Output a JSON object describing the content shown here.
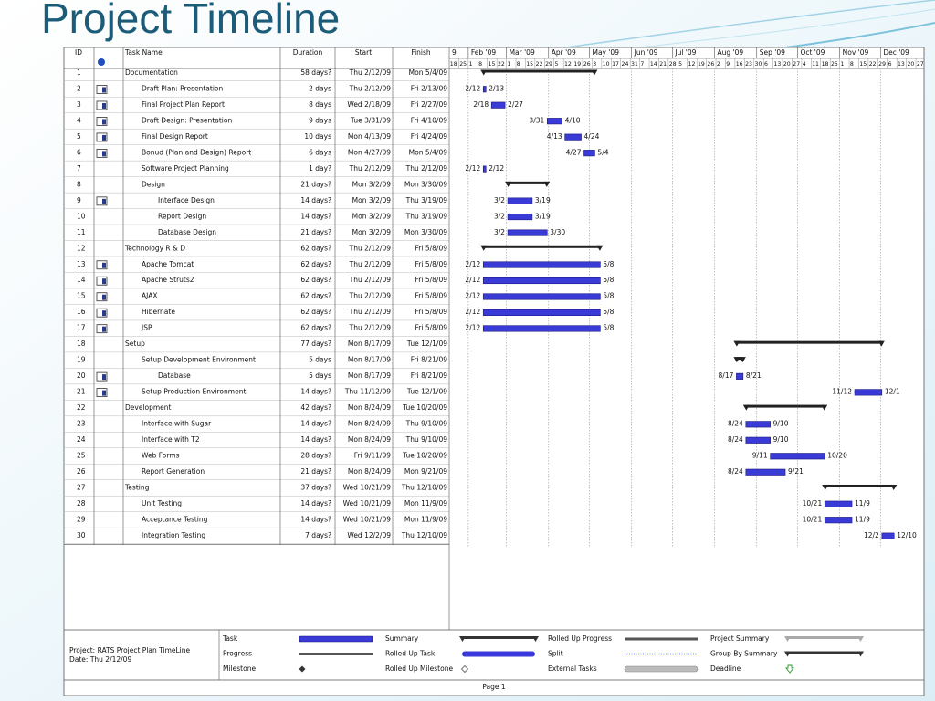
{
  "title": "Project Timeline",
  "table": {
    "header": {
      "id": "ID",
      "name": "Task Name",
      "duration": "Duration",
      "start": "Start",
      "finish": "Finish"
    },
    "rows": [
      {
        "id": 1,
        "name": "Documentation",
        "duration": "58 days?",
        "start": "Thu 2/12/09",
        "finish": "Mon 5/4/09",
        "level": 0,
        "summary": true
      },
      {
        "id": 2,
        "name": "Draft Plan: Presentation",
        "duration": "2 days",
        "start": "Thu 2/12/09",
        "finish": "Fri 2/13/09",
        "level": 1,
        "icon": true,
        "left_label": "2/12",
        "right_label": "2/13"
      },
      {
        "id": 3,
        "name": "Final Project Plan Report",
        "duration": "8 days",
        "start": "Wed 2/18/09",
        "finish": "Fri 2/27/09",
        "level": 1,
        "icon": true,
        "left_label": "2/18",
        "right_label": "2/27"
      },
      {
        "id": 4,
        "name": "Draft Design: Presentation",
        "duration": "9 days",
        "start": "Tue 3/31/09",
        "finish": "Fri 4/10/09",
        "level": 1,
        "icon": true,
        "left_label": "3/31",
        "right_label": "4/10"
      },
      {
        "id": 5,
        "name": "Final Design Report",
        "duration": "10 days",
        "start": "Mon 4/13/09",
        "finish": "Fri 4/24/09",
        "level": 1,
        "icon": true,
        "left_label": "4/13",
        "right_label": "4/24"
      },
      {
        "id": 6,
        "name": "Bonud (Plan and Design) Report",
        "duration": "6 days",
        "start": "Mon 4/27/09",
        "finish": "Mon 5/4/09",
        "level": 1,
        "icon": true,
        "left_label": "4/27",
        "right_label": "5/4"
      },
      {
        "id": 7,
        "name": "Software Project Planning",
        "duration": "1 day?",
        "start": "Thu 2/12/09",
        "finish": "Thu 2/12/09",
        "level": 1,
        "left_label": "2/12",
        "right_label": "2/12"
      },
      {
        "id": 8,
        "name": "Design",
        "duration": "21 days?",
        "start": "Mon 3/2/09",
        "finish": "Mon 3/30/09",
        "level": 1,
        "summary": true
      },
      {
        "id": 9,
        "name": "Interface Design",
        "duration": "14 days?",
        "start": "Mon 3/2/09",
        "finish": "Thu 3/19/09",
        "level": 2,
        "icon": true,
        "left_label": "3/2",
        "right_label": "3/19"
      },
      {
        "id": 10,
        "name": "Report Design",
        "duration": "14 days?",
        "start": "Mon 3/2/09",
        "finish": "Thu 3/19/09",
        "level": 2,
        "left_label": "3/2",
        "right_label": "3/19"
      },
      {
        "id": 11,
        "name": "Database Design",
        "duration": "21 days?",
        "start": "Mon 3/2/09",
        "finish": "Mon 3/30/09",
        "level": 2,
        "left_label": "3/2",
        "right_label": "3/30"
      },
      {
        "id": 12,
        "name": "Technology R & D",
        "duration": "62 days?",
        "start": "Thu 2/12/09",
        "finish": "Fri 5/8/09",
        "level": 0,
        "summary": true
      },
      {
        "id": 13,
        "name": "Apache Tomcat",
        "duration": "62 days?",
        "start": "Thu 2/12/09",
        "finish": "Fri 5/8/09",
        "level": 1,
        "icon": true,
        "left_label": "2/12",
        "right_label": "5/8"
      },
      {
        "id": 14,
        "name": "Apache Struts2",
        "duration": "62 days?",
        "start": "Thu 2/12/09",
        "finish": "Fri 5/8/09",
        "level": 1,
        "icon": true,
        "left_label": "2/12",
        "right_label": "5/8"
      },
      {
        "id": 15,
        "name": "AJAX",
        "duration": "62 days?",
        "start": "Thu 2/12/09",
        "finish": "Fri 5/8/09",
        "level": 1,
        "icon": true,
        "left_label": "2/12",
        "right_label": "5/8"
      },
      {
        "id": 16,
        "name": "Hibernate",
        "duration": "62 days?",
        "start": "Thu 2/12/09",
        "finish": "Fri 5/8/09",
        "level": 1,
        "icon": true,
        "left_label": "2/12",
        "right_label": "5/8"
      },
      {
        "id": 17,
        "name": "JSP",
        "duration": "62 days?",
        "start": "Thu 2/12/09",
        "finish": "Fri 5/8/09",
        "level": 1,
        "icon": true,
        "left_label": "2/12",
        "right_label": "5/8"
      },
      {
        "id": 18,
        "name": "Setup",
        "duration": "77 days?",
        "start": "Mon 8/17/09",
        "finish": "Tue 12/1/09",
        "level": 0,
        "summary": true
      },
      {
        "id": 19,
        "name": "Setup Development Environment",
        "duration": "5 days",
        "start": "Mon 8/17/09",
        "finish": "Fri 8/21/09",
        "level": 1,
        "summary": true
      },
      {
        "id": 20,
        "name": "Database",
        "duration": "5 days",
        "start": "Mon 8/17/09",
        "finish": "Fri 8/21/09",
        "level": 2,
        "icon": true,
        "left_label": "8/17",
        "right_label": "8/21"
      },
      {
        "id": 21,
        "name": "Setup Production Environment",
        "duration": "14 days?",
        "start": "Thu 11/12/09",
        "finish": "Tue 12/1/09",
        "level": 1,
        "icon": true,
        "left_label": "11/12",
        "right_label": "12/1"
      },
      {
        "id": 22,
        "name": "Development",
        "duration": "42 days?",
        "start": "Mon 8/24/09",
        "finish": "Tue 10/20/09",
        "level": 0,
        "summary": true
      },
      {
        "id": 23,
        "name": "Interface with Sugar",
        "duration": "14 days?",
        "start": "Mon 8/24/09",
        "finish": "Thu 9/10/09",
        "level": 1,
        "left_label": "8/24",
        "right_label": "9/10"
      },
      {
        "id": 24,
        "name": "Interface with T2",
        "duration": "14 days?",
        "start": "Mon 8/24/09",
        "finish": "Thu 9/10/09",
        "level": 1,
        "left_label": "8/24",
        "right_label": "9/10"
      },
      {
        "id": 25,
        "name": "Web Forms",
        "duration": "28 days?",
        "start": "Fri 9/11/09",
        "finish": "Tue 10/20/09",
        "level": 1,
        "left_label": "9/11",
        "right_label": "10/20"
      },
      {
        "id": 26,
        "name": "Report Generation",
        "duration": "21 days?",
        "start": "Mon 8/24/09",
        "finish": "Mon 9/21/09",
        "level": 1,
        "left_label": "8/24",
        "right_label": "9/21"
      },
      {
        "id": 27,
        "name": "Testing",
        "duration": "37 days?",
        "start": "Wed 10/21/09",
        "finish": "Thu 12/10/09",
        "level": 0,
        "summary": true
      },
      {
        "id": 28,
        "name": "Unit Testing",
        "duration": "14 days?",
        "start": "Wed 10/21/09",
        "finish": "Mon 11/9/09",
        "level": 1,
        "left_label": "10/21",
        "right_label": "11/9"
      },
      {
        "id": 29,
        "name": "Acceptance Testing",
        "duration": "14 days?",
        "start": "Wed 10/21/09",
        "finish": "Mon 11/9/09",
        "level": 1,
        "left_label": "10/21",
        "right_label": "11/9"
      },
      {
        "id": 30,
        "name": "Integration Testing",
        "duration": "7 days?",
        "start": "Wed 12/2/09",
        "finish": "Thu 12/10/09",
        "level": 1,
        "left_label": "12/2",
        "right_label": "12/10"
      }
    ]
  },
  "timescale": {
    "months": [
      "9",
      "Feb '09",
      "Mar '09",
      "Apr '09",
      "May '09",
      "Jun '09",
      "Jul '09",
      "Aug '09",
      "Sep '09",
      "Oct '09",
      "Nov '09",
      "Dec '09"
    ],
    "weeks": [
      18,
      25,
      1,
      8,
      15,
      22,
      1,
      8,
      15,
      22,
      29,
      5,
      12,
      19,
      26,
      3,
      10,
      17,
      24,
      31,
      7,
      14,
      21,
      28,
      5,
      12,
      19,
      26,
      2,
      9,
      16,
      23,
      30,
      6,
      13,
      20,
      27,
      4,
      11,
      18,
      25,
      1,
      8,
      15,
      22,
      29,
      6,
      13,
      20,
      27
    ]
  },
  "legend": {
    "project": "Project: RATS Project Plan TimeLine",
    "date": "Date: Thu 2/12/09",
    "items": [
      {
        "label": "Task",
        "symbol": "task"
      },
      {
        "label": "Summary",
        "symbol": "summary"
      },
      {
        "label": "Rolled Up Progress",
        "symbol": "rolled-progress"
      },
      {
        "label": "Project Summary",
        "symbol": "project-summary"
      },
      {
        "label": "Progress",
        "symbol": "progress"
      },
      {
        "label": "Rolled Up Task",
        "symbol": "rolled-task"
      },
      {
        "label": "Split",
        "symbol": "split"
      },
      {
        "label": "Group By Summary",
        "symbol": "group-summary"
      },
      {
        "label": "Milestone",
        "symbol": "milestone"
      },
      {
        "label": "Rolled Up Milestone",
        "symbol": "rolled-milestone"
      },
      {
        "label": "External Tasks",
        "symbol": "external"
      },
      {
        "label": "Deadline",
        "symbol": "deadline"
      }
    ]
  },
  "footer": "Page 1"
}
